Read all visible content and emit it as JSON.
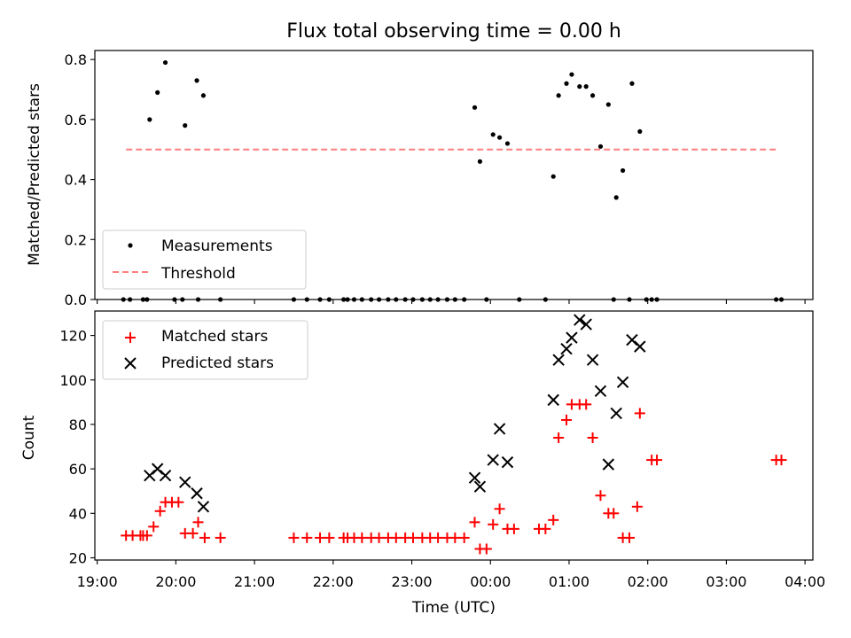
{
  "chart_data": [
    {
      "type": "scatter",
      "title": "Flux total observing time = 0.00 h",
      "ylabel": "Matched/Predicted stars",
      "ylim": [
        0,
        0.83
      ],
      "xlim_hours": [
        18.97,
        28.1
      ],
      "yticks": [
        0.0,
        0.2,
        0.4,
        0.6,
        0.8
      ],
      "ytick_labels": [
        "0.0",
        "0.2",
        "0.4",
        "0.6",
        "0.8"
      ],
      "legend_position": "lower-left",
      "series": [
        {
          "name": "Measurements",
          "marker": "dot",
          "color": "#000000",
          "x": [
            "19:40",
            "19:46",
            "19:52",
            "20:07",
            "20:16",
            "20:21",
            "23:48",
            "23:52",
            "24:02",
            "24:07",
            "24:13",
            "24:48",
            "24:52",
            "24:58",
            "25:02",
            "25:08",
            "25:13",
            "25:18",
            "25:24",
            "25:30",
            "25:36",
            "25:41",
            "25:48",
            "25:54",
            "25:59",
            "19:20",
            "19:25",
            "19:35",
            "19:38",
            "19:59",
            "20:05",
            "20:17",
            "20:34",
            "21:30",
            "21:40",
            "21:50",
            "21:57",
            "22:08",
            "22:11",
            "22:16",
            "22:22",
            "22:29",
            "22:35",
            "22:42",
            "22:48",
            "22:55",
            "23:01",
            "23:08",
            "23:14",
            "23:20",
            "23:27",
            "23:33",
            "23:40",
            "23:57",
            "24:22",
            "24:42",
            "25:34",
            "25:46",
            "26:03",
            "26:07",
            "27:38",
            "27:42"
          ],
          "y": [
            0.6,
            0.69,
            0.79,
            0.58,
            0.73,
            0.68,
            0.64,
            0.46,
            0.55,
            0.54,
            0.52,
            0.41,
            0.68,
            0.72,
            0.75,
            0.71,
            0.71,
            0.68,
            0.51,
            0.65,
            0.34,
            0.43,
            0.72,
            0.56,
            0.0,
            0.0,
            0.0,
            0.0,
            0.0,
            0.0,
            0.0,
            0.0,
            0.0,
            0.0,
            0.0,
            0.0,
            0.0,
            0.0,
            0.0,
            0.0,
            0.0,
            0.0,
            0.0,
            0.0,
            0.0,
            0.0,
            0.0,
            0.0,
            0.0,
            0.0,
            0.0,
            0.0,
            0.0,
            0.0,
            0.0,
            0.0,
            0.0,
            0.0,
            0.0,
            0.0,
            0.0,
            0.0
          ]
        },
        {
          "name": "Threshold",
          "style": "dashed",
          "color": "#ff7f7f",
          "x": [
            "19:22",
            "27:40"
          ],
          "y": [
            0.5,
            0.5
          ]
        }
      ]
    },
    {
      "type": "scatter",
      "xlabel": "Time (UTC)",
      "ylabel": "Count",
      "ylim": [
        19,
        131
      ],
      "xlim_hours": [
        18.97,
        28.1
      ],
      "yticks": [
        20,
        40,
        60,
        80,
        100,
        120
      ],
      "ytick_labels": [
        "20",
        "40",
        "60",
        "80",
        "100",
        "120"
      ],
      "xticks_hours": [
        19,
        20,
        21,
        22,
        23,
        24,
        25,
        26,
        27,
        28
      ],
      "xtick_labels": [
        "19:00",
        "20:00",
        "21:00",
        "22:00",
        "23:00",
        "00:00",
        "01:00",
        "02:00",
        "03:00",
        "04:00"
      ],
      "legend_position": "upper-left",
      "series": [
        {
          "name": "Matched stars",
          "marker": "plus",
          "color": "#ff0000",
          "x": [
            "19:22",
            "19:27",
            "19:33",
            "19:35",
            "19:38",
            "19:43",
            "19:48",
            "19:52",
            "19:57",
            "20:02",
            "20:07",
            "20:13",
            "20:17",
            "20:22",
            "20:34",
            "21:30",
            "21:40",
            "21:50",
            "21:57",
            "22:08",
            "22:11",
            "22:16",
            "22:22",
            "22:29",
            "22:35",
            "22:42",
            "22:48",
            "22:55",
            "23:01",
            "23:08",
            "23:14",
            "23:20",
            "23:27",
            "23:33",
            "23:40",
            "23:48",
            "23:52",
            "23:57",
            "24:02",
            "24:07",
            "24:13",
            "24:18",
            "24:37",
            "24:42",
            "24:48",
            "24:52",
            "24:58",
            "25:02",
            "25:08",
            "25:13",
            "25:18",
            "25:24",
            "25:30",
            "25:34",
            "25:41",
            "25:46",
            "25:52",
            "25:54",
            "26:03",
            "26:07",
            "27:38",
            "27:42"
          ],
          "y": [
            30,
            30,
            30,
            30,
            30,
            34,
            41,
            45,
            45,
            45,
            31,
            31,
            36,
            29,
            29,
            29,
            29,
            29,
            29,
            29,
            29,
            29,
            29,
            29,
            29,
            29,
            29,
            29,
            29,
            29,
            29,
            29,
            29,
            29,
            29,
            36,
            24,
            24,
            35,
            42,
            33,
            33,
            33,
            33,
            37,
            74,
            82,
            89,
            89,
            89,
            74,
            48,
            40,
            40,
            29,
            29,
            43,
            85,
            64,
            64,
            64,
            64
          ]
        },
        {
          "name": "Predicted stars",
          "marker": "x",
          "color": "#000000",
          "x": [
            "19:40",
            "19:46",
            "19:52",
            "20:07",
            "20:16",
            "20:21",
            "23:48",
            "23:52",
            "24:02",
            "24:07",
            "24:13",
            "24:48",
            "24:52",
            "24:58",
            "25:02",
            "25:08",
            "25:13",
            "25:18",
            "25:24",
            "25:30",
            "25:36",
            "25:41",
            "25:48",
            "25:54"
          ],
          "y": [
            57,
            60,
            57,
            54,
            49,
            43,
            56,
            52,
            64,
            78,
            63,
            91,
            109,
            114,
            119,
            127,
            125,
            109,
            95,
            62,
            85,
            99,
            118,
            115
          ]
        }
      ]
    }
  ]
}
